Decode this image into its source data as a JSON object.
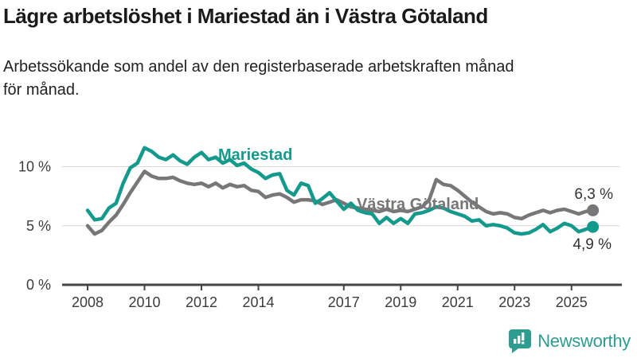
{
  "header": {
    "title": "Lägre arbetslöshet i Mariestad än i Västra Götaland",
    "subtitle": "Arbetssökande som andel av den registerbaserade arbetskraften månad för månad.",
    "subtitle_lines": [
      "Arbetssökande som andel av den registerbaserade arbetskraften månad",
      "för månad."
    ]
  },
  "chart_data": {
    "type": "line",
    "title": "Lägre arbetslöshet i Mariestad än i Västra Götaland",
    "subtitle": "Arbetssökande som andel av den registerbaserade arbetskraften månad för månad.",
    "unit": "%",
    "x_start": 2008.0,
    "x_step": 0.25,
    "xlim": [
      2007.1,
      2026.7
    ],
    "ylim": [
      0,
      12.6
    ],
    "grid": "horizontal",
    "legend_position": "inline-labels",
    "x_ticks": [
      2008,
      2010,
      2012,
      2014,
      2017,
      2019,
      2021,
      2023,
      2025
    ],
    "y_ticks": [
      {
        "label": "0 %",
        "value": 0
      },
      {
        "label": "5 %",
        "value": 5
      },
      {
        "label": "10 %",
        "value": 10
      }
    ],
    "series": [
      {
        "name": "Mariestad",
        "color": "#149a8d",
        "end_label": "4,9 %",
        "end_value": 4.9,
        "values": [
          6.3,
          5.5,
          5.6,
          6.5,
          6.9,
          8.6,
          9.9,
          10.3,
          11.6,
          11.3,
          10.8,
          10.6,
          11.0,
          10.5,
          10.2,
          10.8,
          11.2,
          10.6,
          10.8,
          10.3,
          10.6,
          10.1,
          10.3,
          9.8,
          9.5,
          9.0,
          9.3,
          9.4,
          8.0,
          7.6,
          8.6,
          8.4,
          6.9,
          7.3,
          7.8,
          7.1,
          6.4,
          6.9,
          6.3,
          6.1,
          6.0,
          5.2,
          5.7,
          5.2,
          5.6,
          5.2,
          6.0,
          6.1,
          6.3,
          6.6,
          6.5,
          6.2,
          6.0,
          5.8,
          5.4,
          5.5,
          5.0,
          5.1,
          5.0,
          4.8,
          4.4,
          4.3,
          4.4,
          4.7,
          5.1,
          4.5,
          4.8,
          5.2,
          5.0,
          4.5,
          4.7,
          4.9
        ]
      },
      {
        "name": "Västra Götaland",
        "color": "#77777a",
        "end_label": "6,3 %",
        "end_value": 6.3,
        "values": [
          5.0,
          4.3,
          4.6,
          5.3,
          5.9,
          6.8,
          7.8,
          8.7,
          9.6,
          9.2,
          9.0,
          9.0,
          9.1,
          8.8,
          8.6,
          8.5,
          8.6,
          8.3,
          8.6,
          8.2,
          8.5,
          8.3,
          8.4,
          8.0,
          7.9,
          7.4,
          7.6,
          7.7,
          7.4,
          7.0,
          7.2,
          7.2,
          7.1,
          6.8,
          7.0,
          7.2,
          6.9,
          6.6,
          6.5,
          6.4,
          6.3,
          6.2,
          6.4,
          6.2,
          6.3,
          6.2,
          6.4,
          6.6,
          7.2,
          8.9,
          8.5,
          8.4,
          8.0,
          7.5,
          7.0,
          6.6,
          6.2,
          6.0,
          6.1,
          6.0,
          5.7,
          5.6,
          5.9,
          6.1,
          6.3,
          6.1,
          6.3,
          6.4,
          6.2,
          6.0,
          6.2,
          6.3
        ]
      }
    ]
  },
  "branding": {
    "logo_text": "Newsworthy",
    "logo_icon": "bar-chart-speech-bubble-icon",
    "brand_color": "#2e9c90"
  }
}
